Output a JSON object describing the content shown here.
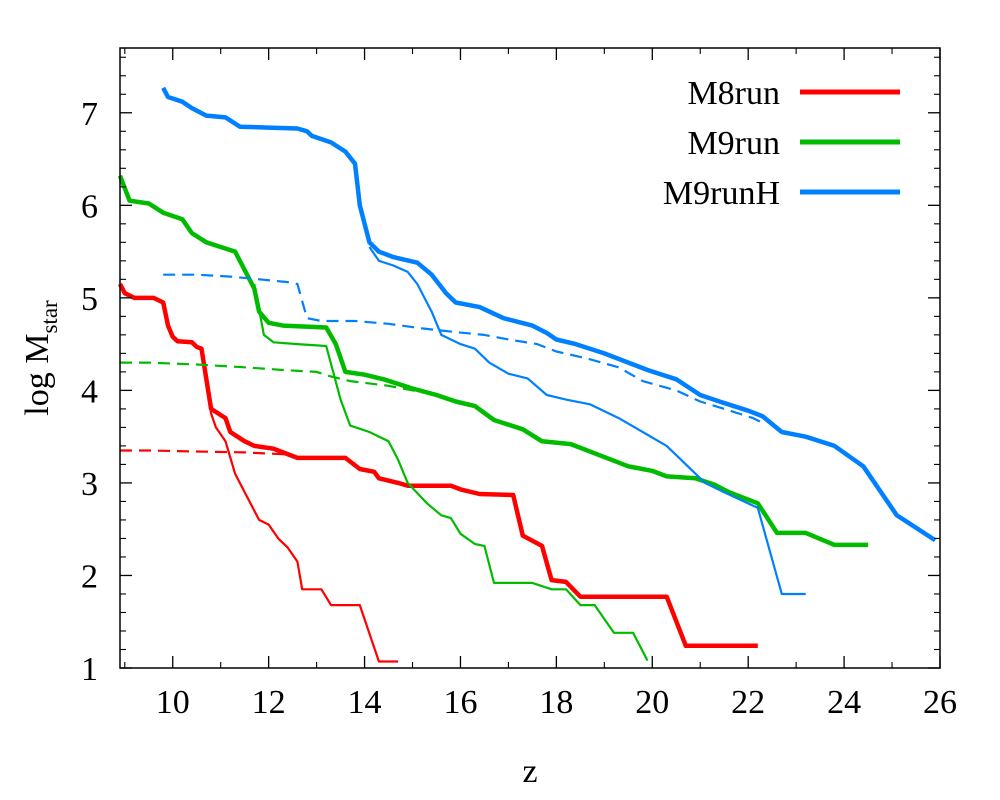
{
  "chart_data": {
    "type": "line",
    "xlabel": "z",
    "ylabel": {
      "main": "log M",
      "sub": "star"
    },
    "xlim": [
      8.9,
      26.0
    ],
    "ylim": [
      1.0,
      7.7
    ],
    "xticks": [
      "10",
      "12",
      "14",
      "16",
      "18",
      "20",
      "22",
      "24",
      "26"
    ],
    "yticks": [
      "1",
      "2",
      "3",
      "4",
      "5",
      "6",
      "7"
    ],
    "grid": false,
    "legend_position": "top-right",
    "legend": [
      {
        "label": "M8run",
        "color": "#ff0000"
      },
      {
        "label": "M9run",
        "color": "#00bb00"
      },
      {
        "label": "M9runH",
        "color": "#0080ff"
      }
    ],
    "series": [
      {
        "name": "M8run",
        "color": "#ff0000",
        "style": "thick",
        "points": [
          [
            8.9,
            5.15
          ],
          [
            9.0,
            5.05
          ],
          [
            9.2,
            5.0
          ],
          [
            9.6,
            5.0
          ],
          [
            9.8,
            4.95
          ],
          [
            9.9,
            4.7
          ],
          [
            10.0,
            4.58
          ],
          [
            10.1,
            4.53
          ],
          [
            10.4,
            4.52
          ],
          [
            10.5,
            4.47
          ],
          [
            10.6,
            4.45
          ],
          [
            10.8,
            3.8
          ],
          [
            11.1,
            3.7
          ],
          [
            11.2,
            3.55
          ],
          [
            11.5,
            3.45
          ],
          [
            11.7,
            3.4
          ],
          [
            12.1,
            3.37
          ],
          [
            12.3,
            3.33
          ],
          [
            12.6,
            3.27
          ],
          [
            13.6,
            3.27
          ],
          [
            13.9,
            3.15
          ],
          [
            14.2,
            3.12
          ],
          [
            14.3,
            3.05
          ],
          [
            14.7,
            3.0
          ],
          [
            14.9,
            2.97
          ],
          [
            15.8,
            2.97
          ],
          [
            16.0,
            2.93
          ],
          [
            16.4,
            2.88
          ],
          [
            17.1,
            2.87
          ],
          [
            17.3,
            2.43
          ],
          [
            17.7,
            2.32
          ],
          [
            17.9,
            1.95
          ],
          [
            18.2,
            1.93
          ],
          [
            18.5,
            1.77
          ],
          [
            20.3,
            1.77
          ],
          [
            20.7,
            1.24
          ],
          [
            22.2,
            1.24
          ]
        ]
      },
      {
        "name": "M8run",
        "color": "#ff0000",
        "style": "thin",
        "points": [
          [
            10.6,
            4.45
          ],
          [
            10.8,
            3.75
          ],
          [
            10.9,
            3.6
          ],
          [
            11.1,
            3.45
          ],
          [
            11.3,
            3.1
          ],
          [
            11.5,
            2.9
          ],
          [
            11.8,
            2.6
          ],
          [
            12.0,
            2.55
          ],
          [
            12.2,
            2.4
          ],
          [
            12.4,
            2.3
          ],
          [
            12.6,
            2.15
          ],
          [
            12.7,
            1.85
          ],
          [
            13.1,
            1.85
          ],
          [
            13.3,
            1.68
          ],
          [
            13.9,
            1.68
          ],
          [
            14.3,
            1.07
          ],
          [
            14.7,
            1.07
          ]
        ]
      },
      {
        "name": "M8run",
        "color": "#ff0000",
        "style": "dashed",
        "points": [
          [
            8.9,
            3.35
          ],
          [
            9.5,
            3.35
          ],
          [
            10.5,
            3.34
          ],
          [
            11.5,
            3.33
          ],
          [
            12.3,
            3.31
          ],
          [
            12.6,
            3.28
          ]
        ]
      },
      {
        "name": "M9run",
        "color": "#00bb00",
        "style": "thick",
        "points": [
          [
            8.9,
            6.32
          ],
          [
            9.1,
            6.05
          ],
          [
            9.5,
            6.02
          ],
          [
            9.8,
            5.92
          ],
          [
            10.2,
            5.85
          ],
          [
            10.4,
            5.7
          ],
          [
            10.7,
            5.6
          ],
          [
            11.0,
            5.55
          ],
          [
            11.3,
            5.5
          ],
          [
            11.5,
            5.3
          ],
          [
            11.7,
            5.1
          ],
          [
            11.8,
            4.85
          ],
          [
            12.0,
            4.73
          ],
          [
            12.3,
            4.7
          ],
          [
            13.2,
            4.68
          ],
          [
            13.4,
            4.5
          ],
          [
            13.6,
            4.2
          ],
          [
            14.0,
            4.17
          ],
          [
            14.4,
            4.12
          ],
          [
            15.0,
            4.02
          ],
          [
            15.5,
            3.95
          ],
          [
            15.9,
            3.88
          ],
          [
            16.3,
            3.83
          ],
          [
            16.7,
            3.68
          ],
          [
            17.3,
            3.58
          ],
          [
            17.7,
            3.45
          ],
          [
            18.3,
            3.42
          ],
          [
            18.9,
            3.3
          ],
          [
            19.5,
            3.18
          ],
          [
            20.0,
            3.13
          ],
          [
            20.3,
            3.07
          ],
          [
            20.9,
            3.05
          ],
          [
            21.3,
            2.98
          ],
          [
            21.6,
            2.9
          ],
          [
            22.2,
            2.78
          ],
          [
            22.6,
            2.46
          ],
          [
            23.2,
            2.46
          ],
          [
            23.8,
            2.33
          ],
          [
            24.5,
            2.33
          ]
        ]
      },
      {
        "name": "M9run",
        "color": "#00bb00",
        "style": "thin",
        "points": [
          [
            11.7,
            5.15
          ],
          [
            11.9,
            4.6
          ],
          [
            12.1,
            4.52
          ],
          [
            12.6,
            4.5
          ],
          [
            13.2,
            4.48
          ],
          [
            13.5,
            3.9
          ],
          [
            13.7,
            3.62
          ],
          [
            14.1,
            3.55
          ],
          [
            14.5,
            3.45
          ],
          [
            14.7,
            3.25
          ],
          [
            14.9,
            3.0
          ],
          [
            15.3,
            2.78
          ],
          [
            15.6,
            2.65
          ],
          [
            15.8,
            2.62
          ],
          [
            16.0,
            2.45
          ],
          [
            16.3,
            2.34
          ],
          [
            16.5,
            2.32
          ],
          [
            16.7,
            1.92
          ],
          [
            17.5,
            1.92
          ],
          [
            17.9,
            1.85
          ],
          [
            18.2,
            1.85
          ],
          [
            18.5,
            1.68
          ],
          [
            18.8,
            1.68
          ],
          [
            19.2,
            1.38
          ],
          [
            19.6,
            1.38
          ],
          [
            19.9,
            1.08
          ]
        ]
      },
      {
        "name": "M9run",
        "color": "#00bb00",
        "style": "dashed",
        "points": [
          [
            8.9,
            4.3
          ],
          [
            9.5,
            4.3
          ],
          [
            10.5,
            4.28
          ],
          [
            11.5,
            4.25
          ],
          [
            12.3,
            4.22
          ],
          [
            13.0,
            4.2
          ],
          [
            13.3,
            4.15
          ],
          [
            13.7,
            4.1
          ],
          [
            14.5,
            4.05
          ],
          [
            15.3,
            3.97
          ],
          [
            15.6,
            3.92
          ]
        ]
      },
      {
        "name": "M9runH",
        "color": "#0080ff",
        "style": "thick",
        "points": [
          [
            9.8,
            7.27
          ],
          [
            9.9,
            7.17
          ],
          [
            10.2,
            7.12
          ],
          [
            10.4,
            7.05
          ],
          [
            10.7,
            6.97
          ],
          [
            11.1,
            6.95
          ],
          [
            11.4,
            6.85
          ],
          [
            12.0,
            6.84
          ],
          [
            12.6,
            6.83
          ],
          [
            12.8,
            6.8
          ],
          [
            12.9,
            6.75
          ],
          [
            13.3,
            6.68
          ],
          [
            13.6,
            6.58
          ],
          [
            13.8,
            6.45
          ],
          [
            13.9,
            6.0
          ],
          [
            14.1,
            5.6
          ],
          [
            14.3,
            5.5
          ],
          [
            14.6,
            5.44
          ],
          [
            15.1,
            5.38
          ],
          [
            15.4,
            5.25
          ],
          [
            15.7,
            5.05
          ],
          [
            15.9,
            4.95
          ],
          [
            16.4,
            4.9
          ],
          [
            16.9,
            4.78
          ],
          [
            17.5,
            4.7
          ],
          [
            17.8,
            4.62
          ],
          [
            18.0,
            4.55
          ],
          [
            18.4,
            4.5
          ],
          [
            19.0,
            4.4
          ],
          [
            19.5,
            4.3
          ],
          [
            19.9,
            4.22
          ],
          [
            20.5,
            4.12
          ],
          [
            21.0,
            3.95
          ],
          [
            21.4,
            3.88
          ],
          [
            22.0,
            3.78
          ],
          [
            22.3,
            3.72
          ],
          [
            22.7,
            3.55
          ],
          [
            23.2,
            3.5
          ],
          [
            23.8,
            3.4
          ],
          [
            24.4,
            3.18
          ],
          [
            25.1,
            2.65
          ],
          [
            25.9,
            2.38
          ]
        ]
      },
      {
        "name": "M9runH",
        "color": "#0080ff",
        "style": "thin",
        "points": [
          [
            14.1,
            5.55
          ],
          [
            14.3,
            5.4
          ],
          [
            14.6,
            5.35
          ],
          [
            14.9,
            5.28
          ],
          [
            15.1,
            5.15
          ],
          [
            15.4,
            4.85
          ],
          [
            15.6,
            4.6
          ],
          [
            16.0,
            4.5
          ],
          [
            16.3,
            4.45
          ],
          [
            16.6,
            4.3
          ],
          [
            17.0,
            4.18
          ],
          [
            17.4,
            4.13
          ],
          [
            17.8,
            3.95
          ],
          [
            18.2,
            3.9
          ],
          [
            18.7,
            3.85
          ],
          [
            19.3,
            3.7
          ],
          [
            19.8,
            3.55
          ],
          [
            20.3,
            3.4
          ],
          [
            20.6,
            3.25
          ],
          [
            21.1,
            3.0
          ],
          [
            21.5,
            2.9
          ],
          [
            22.2,
            2.73
          ],
          [
            22.7,
            1.8
          ],
          [
            23.2,
            1.8
          ]
        ]
      },
      {
        "name": "M9runH",
        "color": "#0080ff",
        "style": "dashed",
        "points": [
          [
            9.8,
            5.25
          ],
          [
            10.5,
            5.25
          ],
          [
            11.2,
            5.23
          ],
          [
            11.8,
            5.2
          ],
          [
            12.4,
            5.17
          ],
          [
            12.6,
            5.15
          ],
          [
            12.8,
            4.78
          ],
          [
            13.1,
            4.75
          ],
          [
            13.8,
            4.75
          ],
          [
            14.5,
            4.72
          ],
          [
            15.2,
            4.67
          ],
          [
            15.9,
            4.63
          ],
          [
            16.5,
            4.6
          ],
          [
            17.0,
            4.55
          ],
          [
            17.6,
            4.5
          ],
          [
            18.0,
            4.42
          ],
          [
            18.6,
            4.35
          ],
          [
            19.3,
            4.25
          ],
          [
            19.8,
            4.1
          ],
          [
            20.5,
            4.0
          ],
          [
            21.0,
            3.88
          ],
          [
            21.5,
            3.8
          ],
          [
            22.1,
            3.7
          ],
          [
            22.3,
            3.65
          ]
        ]
      }
    ]
  }
}
